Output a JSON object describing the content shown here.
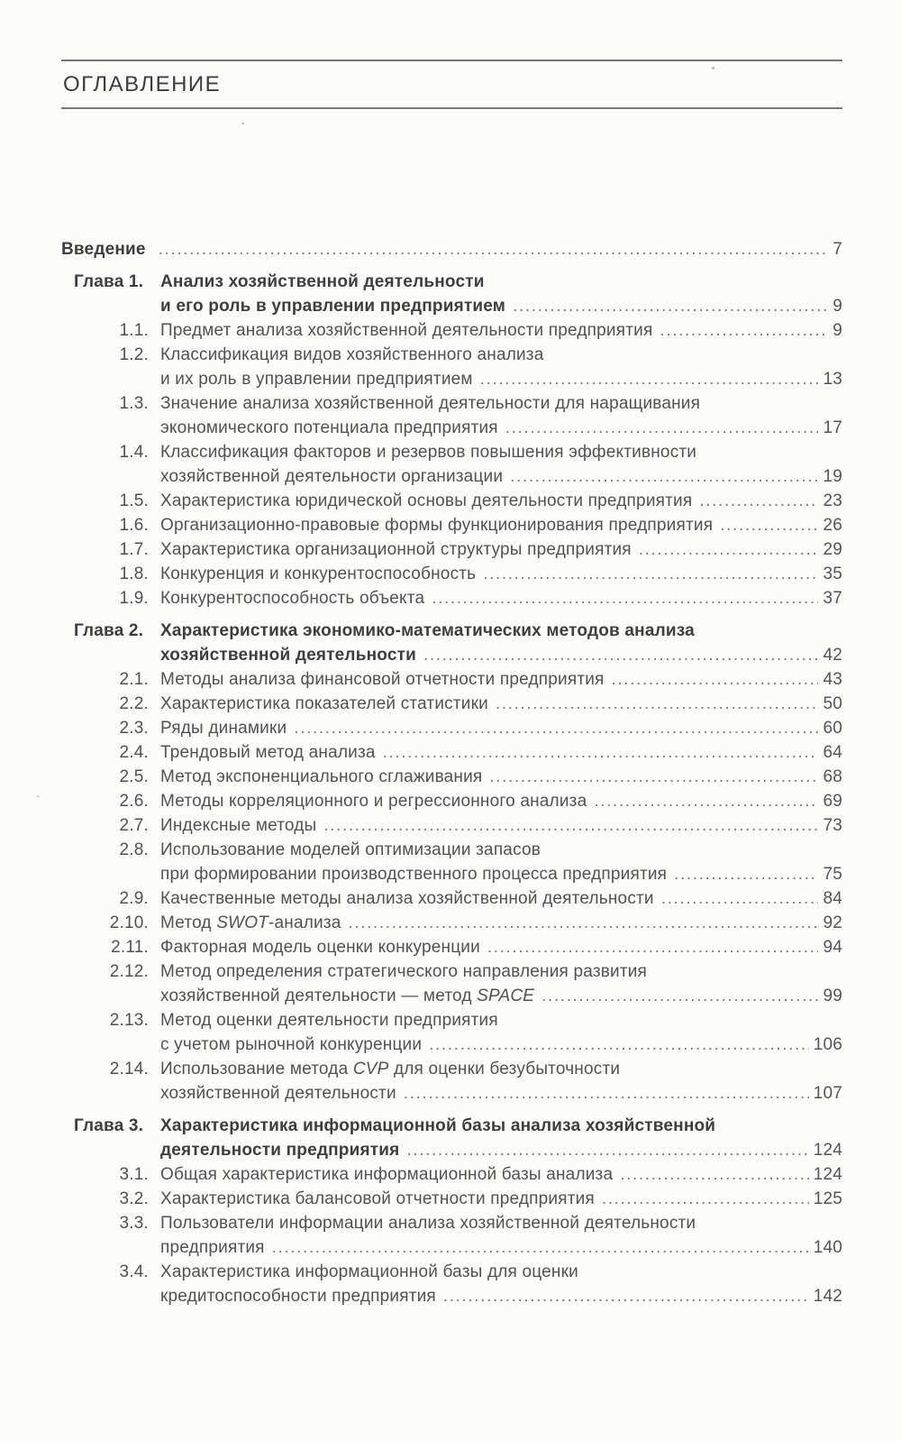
{
  "page_title": "ОГЛАВЛЕНИЕ",
  "colors": {
    "paper": "#fcfcfb",
    "text": "#525252",
    "bold_text": "#3e3e3e",
    "rule": "#757575",
    "dots": "#7e7e7e"
  },
  "toc": {
    "entries": [
      {
        "kind": "intro",
        "num": "",
        "lines": [
          "Введение"
        ],
        "page": "7"
      },
      {
        "kind": "chapter",
        "num": "Глава 1.",
        "lines": [
          "Анализ хозяйственной деятельности",
          "и его роль в управлении предприятием"
        ],
        "page": "9"
      },
      {
        "kind": "section",
        "num": "1.1.",
        "lines": [
          "Предмет анализа хозяйственной деятельности предприятия"
        ],
        "page": "9"
      },
      {
        "kind": "section",
        "num": "1.2.",
        "lines": [
          "Классификация видов хозяйственного анализа",
          "и их роль в управлении предприятием"
        ],
        "page": "13"
      },
      {
        "kind": "section",
        "num": "1.3.",
        "lines": [
          "Значение анализа хозяйственной деятельности для наращивания",
          "экономического потенциала предприятия"
        ],
        "page": "17"
      },
      {
        "kind": "section",
        "num": "1.4.",
        "lines": [
          "Классификация факторов и резервов повышения эффективности",
          "хозяйственной деятельности организации"
        ],
        "page": "19"
      },
      {
        "kind": "section",
        "num": "1.5.",
        "lines": [
          "Характеристика юридической основы деятельности предприятия"
        ],
        "page": "23"
      },
      {
        "kind": "section",
        "num": "1.6.",
        "lines": [
          "Организационно-правовые формы функционирования предприятия"
        ],
        "page": "26"
      },
      {
        "kind": "section",
        "num": "1.7.",
        "lines": [
          "Характеристика организационной структуры предприятия"
        ],
        "page": "29"
      },
      {
        "kind": "section",
        "num": "1.8.",
        "lines": [
          "Конкуренция и конкурентоспособность"
        ],
        "page": "35"
      },
      {
        "kind": "section",
        "num": "1.9.",
        "lines": [
          "Конкурентоспособность объекта"
        ],
        "page": "37"
      },
      {
        "kind": "chapter",
        "num": "Глава 2.",
        "lines": [
          "Характеристика экономико-математических методов анализа",
          "хозяйственной деятельности"
        ],
        "page": "42"
      },
      {
        "kind": "section",
        "num": "2.1.",
        "lines": [
          "Методы анализа финансовой отчетности предприятия"
        ],
        "page": "43"
      },
      {
        "kind": "section",
        "num": "2.2.",
        "lines": [
          "Характеристика показателей статистики"
        ],
        "page": "50"
      },
      {
        "kind": "section",
        "num": "2.3.",
        "lines": [
          "Ряды динамики"
        ],
        "page": "60"
      },
      {
        "kind": "section",
        "num": "2.4.",
        "lines": [
          "Трендовый метод анализа"
        ],
        "page": "64"
      },
      {
        "kind": "section",
        "num": "2.5.",
        "lines": [
          "Метод экспоненциального сглаживания"
        ],
        "page": "68"
      },
      {
        "kind": "section",
        "num": "2.6.",
        "lines": [
          "Методы корреляционного и регрессионного анализа"
        ],
        "page": "69"
      },
      {
        "kind": "section",
        "num": "2.7.",
        "lines": [
          "Индексные методы"
        ],
        "page": "73"
      },
      {
        "kind": "section",
        "num": "2.8.",
        "lines": [
          "Использование моделей оптимизации запасов",
          "при формировании производственного процесса предприятия"
        ],
        "page": "75"
      },
      {
        "kind": "section",
        "num": "2.9.",
        "lines": [
          "Качественные методы анализа хозяйственной деятельности"
        ],
        "page": "84"
      },
      {
        "kind": "section",
        "num": "2.10.",
        "lines": [
          "Метод *SWOT*-анализа"
        ],
        "page": "92"
      },
      {
        "kind": "section",
        "num": "2.11.",
        "lines": [
          "Факторная модель оценки конкуренции"
        ],
        "page": "94"
      },
      {
        "kind": "section",
        "num": "2.12.",
        "lines": [
          "Метод определения стратегического направления развития",
          "хозяйственной деятельности — метод *SPACE*"
        ],
        "page": "99"
      },
      {
        "kind": "section",
        "num": "2.13.",
        "lines": [
          "Метод оценки деятельности предприятия",
          "с учетом рыночной конкуренции"
        ],
        "page": "106"
      },
      {
        "kind": "section",
        "num": "2.14.",
        "lines": [
          "Использование метода *CVP* для оценки безубыточности",
          "хозяйственной деятельности"
        ],
        "page": "107"
      },
      {
        "kind": "chapter",
        "num": "Глава 3.",
        "lines": [
          "Характеристика информационной базы анализа хозяйственной",
          "деятельности предприятия"
        ],
        "page": "124"
      },
      {
        "kind": "section",
        "num": "3.1.",
        "lines": [
          "Общая характеристика информационной базы анализа"
        ],
        "page": "124"
      },
      {
        "kind": "section",
        "num": "3.2.",
        "lines": [
          "Характеристика балансовой отчетности предприятия"
        ],
        "page": "125"
      },
      {
        "kind": "section",
        "num": "3.3.",
        "lines": [
          "Пользователи информации анализа хозяйственной деятельности",
          "предприятия"
        ],
        "page": "140"
      },
      {
        "kind": "section",
        "num": "3.4.",
        "lines": [
          "Характеристика информационной базы для оценки",
          "кредитоспособности предприятия"
        ],
        "page": "142"
      }
    ]
  }
}
